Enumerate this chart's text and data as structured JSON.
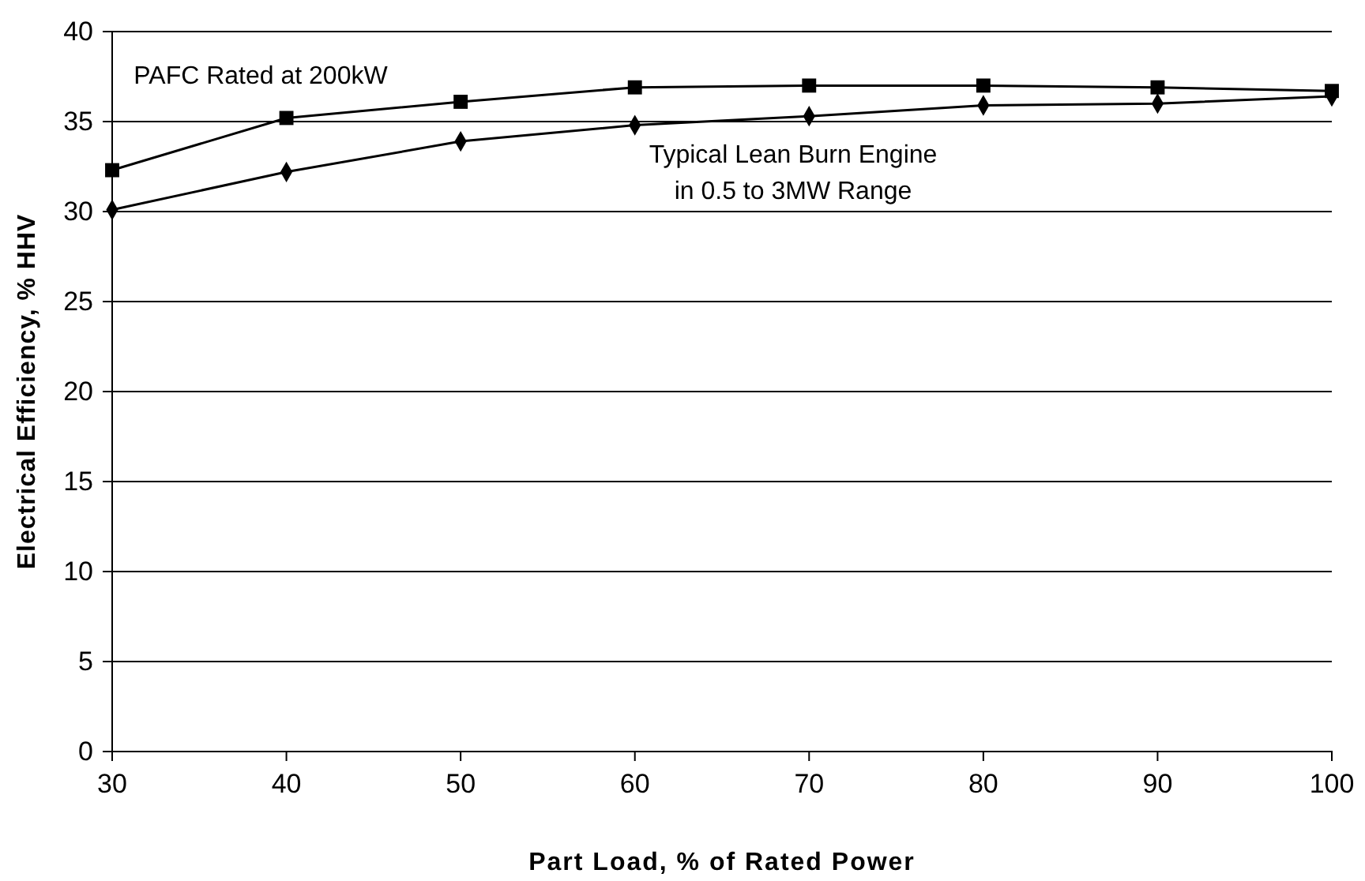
{
  "chart_data": {
    "type": "line",
    "xlabel": "Part Load, % of Rated Power",
    "ylabel": "Electrical Efficiency, % HHV",
    "x": [
      30,
      40,
      50,
      60,
      70,
      80,
      90,
      100
    ],
    "series": [
      {
        "name": "PAFC Rated at 200kW",
        "color": "#000000",
        "marker": "square",
        "values": [
          32.3,
          35.2,
          36.1,
          36.9,
          37.0,
          37.0,
          36.9,
          36.7
        ]
      },
      {
        "name": "Typical Lean Burn Engine\nin 0.5 to 3MW Range",
        "color": "#000000",
        "marker": "diamond",
        "values": [
          30.1,
          32.2,
          33.9,
          34.8,
          35.3,
          35.9,
          36.0,
          36.4
        ]
      }
    ],
    "xlim": [
      30,
      100
    ],
    "xticks": [
      30,
      40,
      50,
      60,
      70,
      80,
      90,
      100
    ],
    "ylim": [
      0,
      40
    ],
    "yticks": [
      0,
      5,
      10,
      15,
      20,
      25,
      30,
      35,
      40
    ],
    "grid": "y",
    "legend": false
  }
}
